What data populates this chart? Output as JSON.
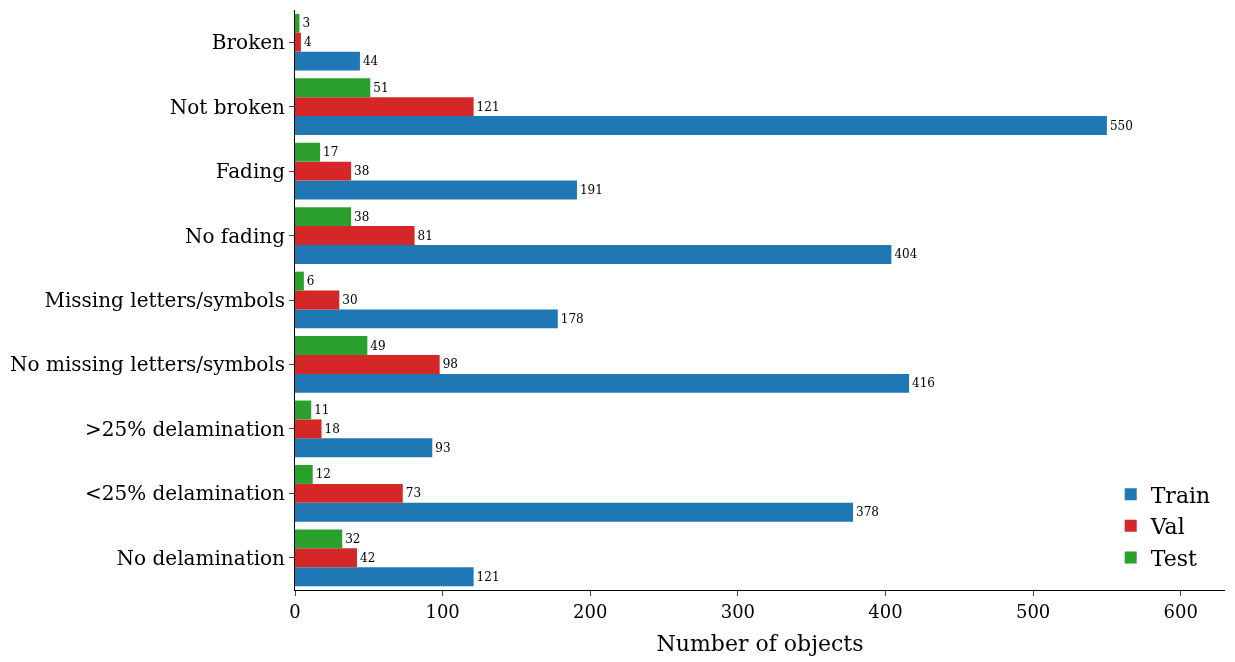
{
  "chart_data": {
    "type": "bar",
    "orientation": "horizontal",
    "xlabel": "Number of objects",
    "categories": [
      "Broken",
      "Not broken",
      "Fading",
      "No fading",
      "Missing letters/symbols",
      "No missing letters/symbols",
      ">25% delamination",
      "<25% delamination",
      "No delamination"
    ],
    "series": [
      {
        "name": "Train",
        "color": "#1f77b4",
        "values": [
          44,
          550,
          191,
          404,
          178,
          416,
          93,
          378,
          121
        ]
      },
      {
        "name": "Val",
        "color": "#d62728",
        "values": [
          4,
          121,
          38,
          81,
          30,
          98,
          18,
          73,
          42
        ]
      },
      {
        "name": "Test",
        "color": "#2ca02c",
        "values": [
          3,
          51,
          17,
          38,
          6,
          49,
          11,
          12,
          32
        ]
      }
    ],
    "xlim": [
      0,
      630
    ],
    "xticks": [
      0,
      100,
      200,
      300,
      400,
      500,
      600
    ],
    "data_labels": true,
    "legend": "bottom right"
  }
}
